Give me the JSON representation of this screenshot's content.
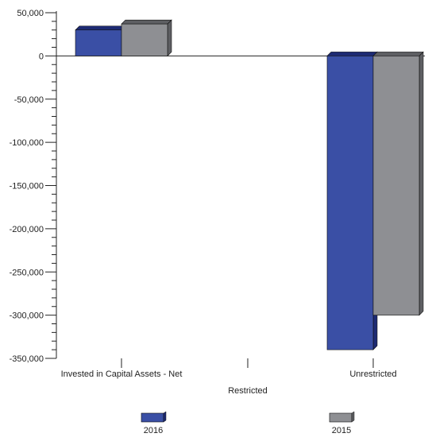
{
  "chart_data": {
    "type": "bar",
    "title": "",
    "xlabel": "",
    "ylabel": "",
    "categories": [
      "Invested in Capital Assets - Net",
      "Restricted",
      "Unrestricted"
    ],
    "series": [
      {
        "name": "2016",
        "values": [
          30000,
          0,
          -340000
        ]
      },
      {
        "name": "2015",
        "values": [
          37000,
          0,
          -300000
        ]
      }
    ],
    "ylim": [
      -350000,
      50000
    ],
    "yticks": [
      50000,
      0,
      -50000,
      -100000,
      -150000,
      -200000,
      -250000,
      -300000,
      -350000
    ],
    "ytick_labels": [
      "50,000",
      "0",
      "-50,000",
      "-100,000",
      "-150,000",
      "-200,000",
      "-250,000",
      "-300,000",
      "-350,000"
    ],
    "grid": false,
    "legend_position": "bottom",
    "style": "3d-bars"
  },
  "colors": {
    "series_fill": [
      "#3a4fa5",
      "#8e8f93"
    ],
    "series_top": [
      "#1d2a73",
      "#5e5f63"
    ],
    "series_side": [
      "#1d2a73",
      "#5e5f63"
    ],
    "axis": "#222222"
  }
}
